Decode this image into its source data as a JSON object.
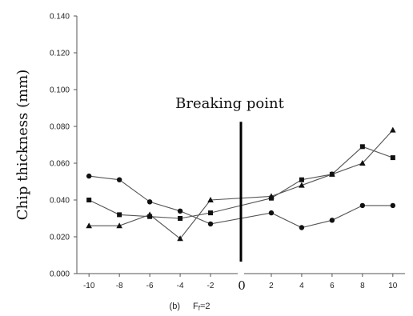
{
  "chart_data": {
    "type": "line",
    "title": "",
    "xlabel": "",
    "ylabel": "Chip thickness (mm)",
    "caption_prefix": "(b)",
    "caption_main": "F",
    "caption_sub": "f",
    "caption_suffix": "=2",
    "x": [
      -10,
      -8,
      -6,
      -4,
      -2,
      2,
      4,
      6,
      8,
      10
    ],
    "xticks": [
      -10,
      -8,
      -6,
      -4,
      -2,
      2,
      4,
      6,
      8,
      10
    ],
    "xzero_label": "0",
    "xlim": [
      -10.8,
      10.8
    ],
    "ylim": [
      0,
      0.14
    ],
    "yticks": [
      0.0,
      0.02,
      0.04,
      0.06,
      0.08,
      0.1,
      0.12,
      0.14
    ],
    "ytick_labels": [
      "0.000",
      "0.020",
      "0.040",
      "0.060",
      "0.080",
      "0.100",
      "0.120",
      "0.140"
    ],
    "grid": false,
    "annotations": [
      {
        "text": "Breaking point",
        "x": 0
      }
    ],
    "series": [
      {
        "marker": "circle",
        "values": [
          0.053,
          0.051,
          0.039,
          0.034,
          0.027,
          0.033,
          0.025,
          0.029,
          0.037,
          0.037
        ]
      },
      {
        "marker": "square",
        "values": [
          0.04,
          0.032,
          0.031,
          0.03,
          0.033,
          0.041,
          0.051,
          0.054,
          0.069,
          0.063
        ]
      },
      {
        "marker": "triangle",
        "values": [
          0.026,
          0.026,
          0.032,
          0.019,
          0.04,
          0.042,
          0.048,
          0.054,
          0.06,
          0.078
        ]
      }
    ]
  }
}
